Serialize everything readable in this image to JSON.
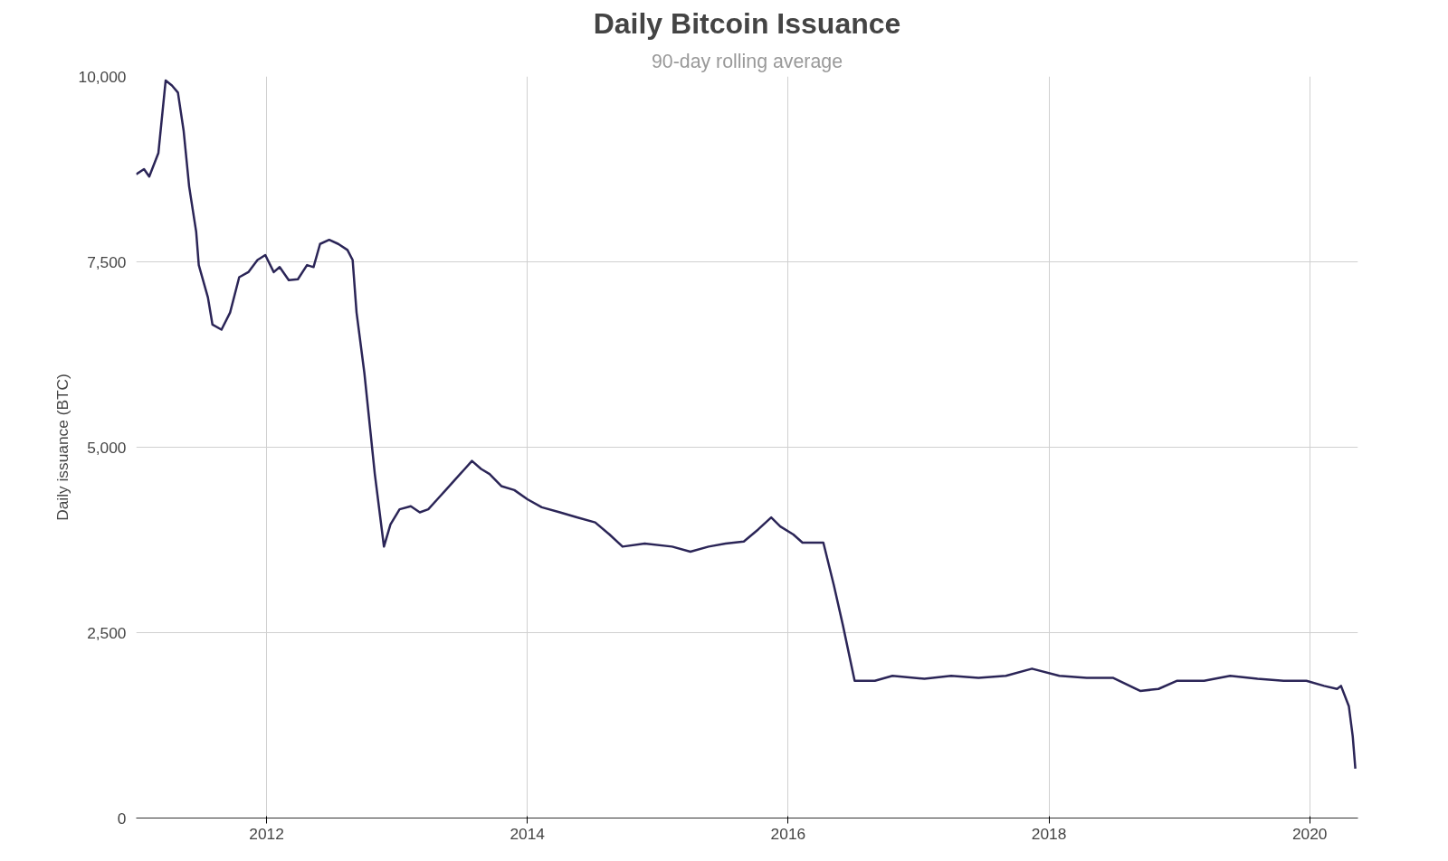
{
  "chart_data": {
    "type": "line",
    "title": "Daily Bitcoin Issuance",
    "subtitle": "90-day rolling average",
    "ylabel": "Daily issuance (BTC)",
    "xlim": [
      2011.0,
      2020.37
    ],
    "xticks": [
      2012,
      2014,
      2016,
      2018,
      2020
    ],
    "ylim": [
      0,
      10000
    ],
    "yticks": [
      {
        "value": 0,
        "label": "0"
      },
      {
        "value": 2500,
        "label": "2,500"
      },
      {
        "value": 5000,
        "label": "5,000"
      },
      {
        "value": 7500,
        "label": "7,500"
      },
      {
        "value": 10000,
        "label": "10,000"
      }
    ],
    "grid": true,
    "marker": "none",
    "line_style": "solid",
    "series": [
      {
        "color": "#2b2557",
        "x": [
          2011.0,
          2011.06,
          2011.1,
          2011.17,
          2011.226,
          2011.274,
          2011.32,
          2011.364,
          2011.406,
          2011.46,
          2011.48,
          2011.55,
          2011.585,
          2011.654,
          2011.72,
          2011.79,
          2011.86,
          2011.93,
          2011.99,
          2012.055,
          2012.1,
          2012.17,
          2012.24,
          2012.31,
          2012.36,
          2012.41,
          2012.48,
          2012.55,
          2012.62,
          2012.66,
          2012.69,
          2012.75,
          2012.83,
          2012.9,
          2012.95,
          2013.02,
          2013.106,
          2013.175,
          2013.24,
          2013.31,
          2013.38,
          2013.45,
          2013.52,
          2013.575,
          2013.645,
          2013.71,
          2013.8,
          2013.9,
          2014.0,
          2014.11,
          2014.25,
          2014.38,
          2014.52,
          2014.63,
          2014.73,
          2014.9,
          2015.11,
          2015.25,
          2015.39,
          2015.52,
          2015.66,
          2015.77,
          2015.87,
          2015.94,
          2016.04,
          2016.11,
          2016.27,
          2016.35,
          2016.42,
          2016.51,
          2016.665,
          2016.8,
          2017.045,
          2017.25,
          2017.46,
          2017.67,
          2017.87,
          2018.08,
          2018.29,
          2018.49,
          2018.7,
          2018.84,
          2018.98,
          2019.19,
          2019.39,
          2019.6,
          2019.8,
          2019.975,
          2020.11,
          2020.21,
          2020.24,
          2020.3,
          2020.33,
          2020.35
        ],
        "values": [
          8680,
          8750,
          8650,
          8966,
          9946,
          9878,
          9782,
          9265,
          8517,
          7905,
          7456,
          7020,
          6653,
          6585,
          6816,
          7293,
          7361,
          7524,
          7592,
          7361,
          7429,
          7252,
          7265,
          7456,
          7429,
          7741,
          7796,
          7741,
          7660,
          7524,
          6816,
          6000,
          4639,
          3660,
          3959,
          4163,
          4204,
          4122,
          4163,
          4299,
          4435,
          4571,
          4707,
          4816,
          4707,
          4639,
          4476,
          4422,
          4299,
          4190,
          4122,
          4054,
          3986,
          3823,
          3660,
          3700,
          3660,
          3592,
          3660,
          3700,
          3728,
          3891,
          4054,
          3932,
          3823,
          3714,
          3714,
          3143,
          2599,
          1850,
          1850,
          1918,
          1878,
          1918,
          1891,
          1918,
          2014,
          1918,
          1891,
          1891,
          1714,
          1741,
          1850,
          1850,
          1918,
          1878,
          1850,
          1850,
          1782,
          1741,
          1782,
          1510,
          1102,
          667
        ]
      }
    ]
  }
}
